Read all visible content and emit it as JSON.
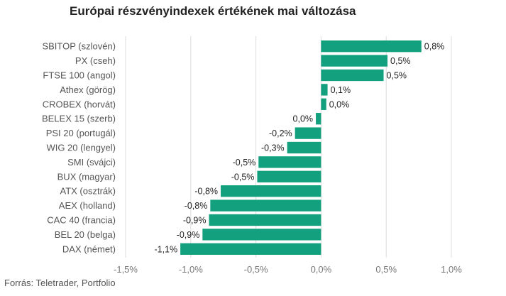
{
  "chart_data": {
    "type": "bar",
    "orientation": "horizontal",
    "title": "Európai részvényindexek értékének mai változása",
    "categories": [
      "SBITOP (szlovén)",
      "PX (cseh)",
      "FTSE 100 (angol)",
      "Athex (görög)",
      "CROBEX (horvát)",
      "BELEX 15 (szerb)",
      "PSI 20 (portugál)",
      "WIG 20 (lengyel)",
      "SMI (svájci)",
      "BUX (magyar)",
      "ATX (osztrák)",
      "AEX (holland)",
      "CAC 40 (francia)",
      "BEL 20 (belga)",
      "DAX (német)"
    ],
    "values": [
      0.77,
      0.51,
      0.48,
      0.05,
      0.04,
      -0.04,
      -0.2,
      -0.26,
      -0.48,
      -0.49,
      -0.77,
      -0.85,
      -0.86,
      -0.91,
      -1.08
    ],
    "value_labels": [
      "0,8%",
      "0,5%",
      "0,5%",
      "0,1%",
      "0,0%",
      "0,0%",
      "-0,2%",
      "-0,3%",
      "-0,5%",
      "-0,5%",
      "-0,8%",
      "-0,8%",
      "-0,9%",
      "-0,9%",
      "-1,1%"
    ],
    "xlim": [
      -1.5,
      1.0
    ],
    "ticks": [
      -1.5,
      -1.0,
      -0.5,
      0.0,
      0.5,
      1.0
    ],
    "tick_labels": [
      "-1,5%",
      "-1,0%",
      "-0,5%",
      "0,0%",
      "0,5%",
      "1,0%"
    ],
    "grid": "vertical",
    "bar_color": "#12a07e",
    "legend": "none"
  },
  "source": "Forrás: Teletrader, Portfolio"
}
